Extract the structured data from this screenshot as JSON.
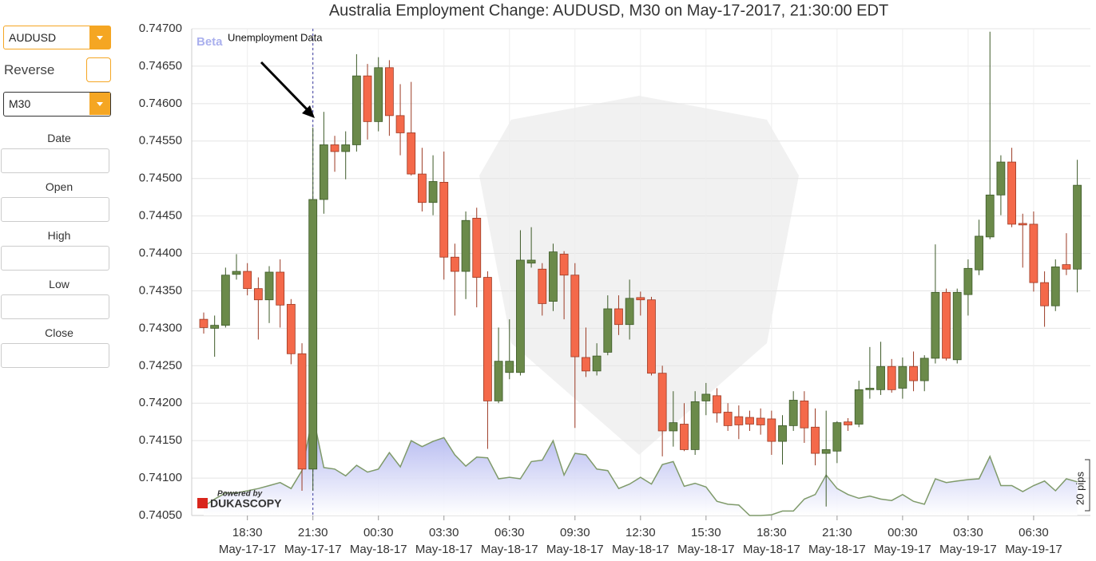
{
  "controls": {
    "symbol": "AUDUSD",
    "reverse_label": "Reverse",
    "timeframe": "M30",
    "fields": [
      "Date",
      "Open",
      "High",
      "Low",
      "Close"
    ]
  },
  "chart_data": {
    "type": "candlestick",
    "title": "Australia Employment Change: AUDUSD, M30 on May-17-2017, 21:30:00 EDT",
    "badge": "Beta",
    "annotation": "Unemployment Data",
    "credit": [
      "Powered by",
      "DUKASCOPY"
    ],
    "scale_note": "20 pips",
    "grid": true,
    "up_color": "#6b8a4a",
    "down_color": "#f4694a",
    "categories": [
      null,
      null,
      null,
      null,
      "18:30",
      null,
      null,
      null,
      null,
      null,
      "21:30",
      null,
      null,
      null,
      null,
      null,
      "00:30",
      null,
      null,
      null,
      null,
      null,
      "03:30",
      null,
      null,
      null,
      null,
      null,
      "06:30",
      null,
      null,
      null,
      null,
      null,
      "09:30",
      null,
      null,
      null,
      null,
      null,
      "12:30",
      null,
      null,
      null,
      null,
      null,
      "15:30",
      null,
      null,
      null,
      null,
      null,
      "18:30",
      null,
      null,
      null,
      null,
      null,
      "21:30",
      null,
      null,
      null,
      null,
      null,
      "00:30",
      null,
      null,
      null,
      null,
      null,
      "03:30",
      null,
      null,
      null,
      null,
      null,
      "06:30",
      null,
      null,
      null,
      null
    ],
    "dates": [
      null,
      null,
      null,
      null,
      "May-17-17",
      null,
      null,
      null,
      null,
      null,
      "May-17-17",
      null,
      null,
      null,
      null,
      null,
      "May-18-17",
      null,
      null,
      null,
      null,
      null,
      "May-18-17",
      null,
      null,
      null,
      null,
      null,
      "May-18-17",
      null,
      null,
      null,
      null,
      null,
      "May-18-17",
      null,
      null,
      null,
      null,
      null,
      "May-18-17",
      null,
      null,
      null,
      null,
      null,
      "May-18-17",
      null,
      null,
      null,
      null,
      null,
      "May-18-17",
      null,
      null,
      null,
      null,
      null,
      "May-18-17",
      null,
      null,
      null,
      null,
      null,
      "May-19-17",
      null,
      null,
      null,
      null,
      null,
      "May-19-17",
      null,
      null,
      null,
      null,
      null,
      "May-19-17",
      null,
      null,
      null,
      null
    ],
    "open": [
      0.74312,
      0.743,
      0.74304,
      0.74372,
      0.74376,
      0.74353,
      0.74338,
      0.74375,
      0.74332,
      0.74266,
      0.74112,
      0.74472,
      0.74545,
      0.74536,
      0.74545,
      0.74637,
      0.74576,
      0.74648,
      0.74584,
      0.74561,
      0.74506,
      0.74468,
      0.74495,
      0.74395,
      0.74376,
      0.74447,
      0.74368,
      0.74203,
      0.74241,
      0.74241,
      0.74387,
      0.74379,
      0.74336,
      0.74399,
      0.74371,
      0.74261,
      0.74243,
      0.74268,
      0.74326,
      0.74305,
      0.74341,
      0.74338,
      0.7424,
      0.74163,
      0.74172,
      0.74138,
      0.74203,
      0.7421,
      0.74188,
      0.74182,
      0.74181,
      0.7418,
      0.74179,
      0.74149,
      0.7417,
      0.74203,
      0.74168,
      0.74133,
      0.74136,
      0.74175,
      0.74172,
      0.74218,
      0.74218,
      0.74249,
      0.7422,
      0.74249,
      0.7423,
      0.7426,
      0.74348,
      0.74258,
      0.74345,
      0.74378,
      0.74422,
      0.74478,
      0.74522,
      0.7444,
      0.74439,
      0.74361,
      0.7433,
      0.74385,
      0.74379
    ],
    "high": [
      0.74321,
      0.74317,
      0.74381,
      0.74399,
      0.74387,
      0.74368,
      0.74383,
      0.74392,
      0.74339,
      0.7428,
      0.74568,
      0.74589,
      0.74557,
      0.74563,
      0.74666,
      0.74653,
      0.74662,
      0.74658,
      0.74626,
      0.74629,
      0.74541,
      0.74531,
      0.74536,
      0.74413,
      0.74456,
      0.74461,
      0.74376,
      0.74301,
      0.74312,
      0.74431,
      0.74435,
      0.74387,
      0.74413,
      0.74403,
      0.74387,
      0.74301,
      0.7428,
      0.74344,
      0.74344,
      0.74365,
      0.74349,
      0.74342,
      0.7425,
      0.74216,
      0.742,
      0.74216,
      0.74227,
      0.7422,
      0.742,
      0.74197,
      0.7419,
      0.74193,
      0.7419,
      0.74184,
      0.74216,
      0.74216,
      0.74193,
      0.7419,
      0.74176,
      0.7418,
      0.7423,
      0.74275,
      0.74282,
      0.74259,
      0.74261,
      0.74269,
      0.74264,
      0.74412,
      0.74353,
      0.74353,
      0.74392,
      0.74445,
      0.74696,
      0.74531,
      0.74541,
      0.74453,
      0.74456,
      0.74376,
      0.74392,
      0.74427,
      0.74525
    ],
    "low": [
      0.74293,
      0.74262,
      0.74301,
      0.74365,
      0.74344,
      0.74285,
      0.74307,
      0.74301,
      0.74252,
      0.74083,
      0.74083,
      0.74453,
      0.74509,
      0.74499,
      0.74536,
      0.74552,
      0.74563,
      0.74557,
      0.74531,
      0.74504,
      0.74456,
      0.74451,
      0.74365,
      0.74317,
      0.74339,
      0.74328,
      0.74139,
      0.742,
      0.74232,
      0.74237,
      0.74381,
      0.74317,
      0.74323,
      0.74312,
      0.74167,
      0.74235,
      0.74237,
      0.74264,
      0.74291,
      0.74285,
      0.74317,
      0.74237,
      0.74129,
      0.74142,
      0.74136,
      0.74131,
      0.74184,
      0.74174,
      0.74163,
      0.74152,
      0.74163,
      0.74158,
      0.74131,
      0.74118,
      0.74163,
      0.74147,
      0.74117,
      0.74062,
      0.7412,
      0.74163,
      0.74168,
      0.74206,
      0.74211,
      0.74214,
      0.74206,
      0.74216,
      0.74216,
      0.74253,
      0.74257,
      0.74253,
      0.74317,
      0.74371,
      0.74419,
      0.74451,
      0.74435,
      0.74381,
      0.74349,
      0.74302,
      0.74323,
      0.74371,
      0.74348
    ],
    "close": [
      0.74301,
      0.74304,
      0.74371,
      0.74376,
      0.74353,
      0.74338,
      0.74375,
      0.74331,
      0.74266,
      0.74112,
      0.74472,
      0.74545,
      0.74536,
      0.74545,
      0.74637,
      0.74576,
      0.74648,
      0.74584,
      0.74561,
      0.74506,
      0.74468,
      0.74496,
      0.74395,
      0.74376,
      0.74444,
      0.74368,
      0.74203,
      0.74256,
      0.74256,
      0.74391,
      0.74391,
      0.74333,
      0.74402,
      0.74371,
      0.74262,
      0.74243,
      0.74263,
      0.74326,
      0.74305,
      0.7434,
      0.74338,
      0.7424,
      0.74163,
      0.74174,
      0.74138,
      0.74202,
      0.74212,
      0.74187,
      0.7417,
      0.74171,
      0.74172,
      0.74171,
      0.74149,
      0.7417,
      0.74204,
      0.74167,
      0.74133,
      0.74138,
      0.74174,
      0.74171,
      0.74218,
      0.7422,
      0.74249,
      0.74218,
      0.74249,
      0.7423,
      0.7426,
      0.74348,
      0.7426,
      0.74348,
      0.7438,
      0.74423,
      0.74478,
      0.74522,
      0.74439,
      0.74438,
      0.74361,
      0.7433,
      0.74382,
      0.74379,
      0.74491
    ],
    "area": {
      "color": "#9ea4ec",
      "line_color": "#7f9a6a",
      "values": [
        0.74062,
        0.74072,
        0.7408,
        0.7408,
        0.74083,
        0.74086,
        0.7409,
        0.74094,
        0.74086,
        0.7411,
        0.74184,
        0.74114,
        0.74112,
        0.74103,
        0.74117,
        0.74108,
        0.74112,
        0.74134,
        0.74115,
        0.7415,
        0.74142,
        0.74149,
        0.74154,
        0.74131,
        0.74116,
        0.74128,
        0.74127,
        0.74099,
        0.74101,
        0.74099,
        0.74122,
        0.74124,
        0.7415,
        0.74104,
        0.74133,
        0.74131,
        0.74112,
        0.7411,
        0.74086,
        0.74092,
        0.74101,
        0.74092,
        0.74118,
        0.74122,
        0.74089,
        0.74093,
        0.74088,
        0.74069,
        0.74065,
        0.74064,
        0.7405,
        0.7405,
        0.74051,
        0.74056,
        0.74056,
        0.74072,
        0.74078,
        0.74104,
        0.74086,
        0.74078,
        0.74073,
        0.74076,
        0.74072,
        0.7407,
        0.74078,
        0.74069,
        0.74065,
        0.74099,
        0.74094,
        0.74096,
        0.74098,
        0.74099,
        0.74129,
        0.7409,
        0.7409,
        0.74082,
        0.7409,
        0.74096,
        0.74083,
        0.74099,
        0.74095
      ]
    },
    "ylim": [
      0.7405,
      0.747
    ],
    "yticks": [
      {
        "value": 0.7405,
        "label": "0.74050"
      },
      {
        "value": 0.741,
        "label": "0.74100"
      },
      {
        "value": 0.7415,
        "label": "0.74150"
      },
      {
        "value": 0.742,
        "label": "0.74200"
      },
      {
        "value": 0.7425,
        "label": "0.74250"
      },
      {
        "value": 0.743,
        "label": "0.74300"
      },
      {
        "value": 0.7435,
        "label": "0.74350"
      },
      {
        "value": 0.744,
        "label": "0.74400"
      },
      {
        "value": 0.7445,
        "label": "0.74450"
      },
      {
        "value": 0.745,
        "label": "0.74500"
      },
      {
        "value": 0.7455,
        "label": "0.74550"
      },
      {
        "value": 0.746,
        "label": "0.74600"
      },
      {
        "value": 0.7465,
        "label": "0.74650"
      },
      {
        "value": 0.747,
        "label": "0.74700"
      }
    ]
  }
}
